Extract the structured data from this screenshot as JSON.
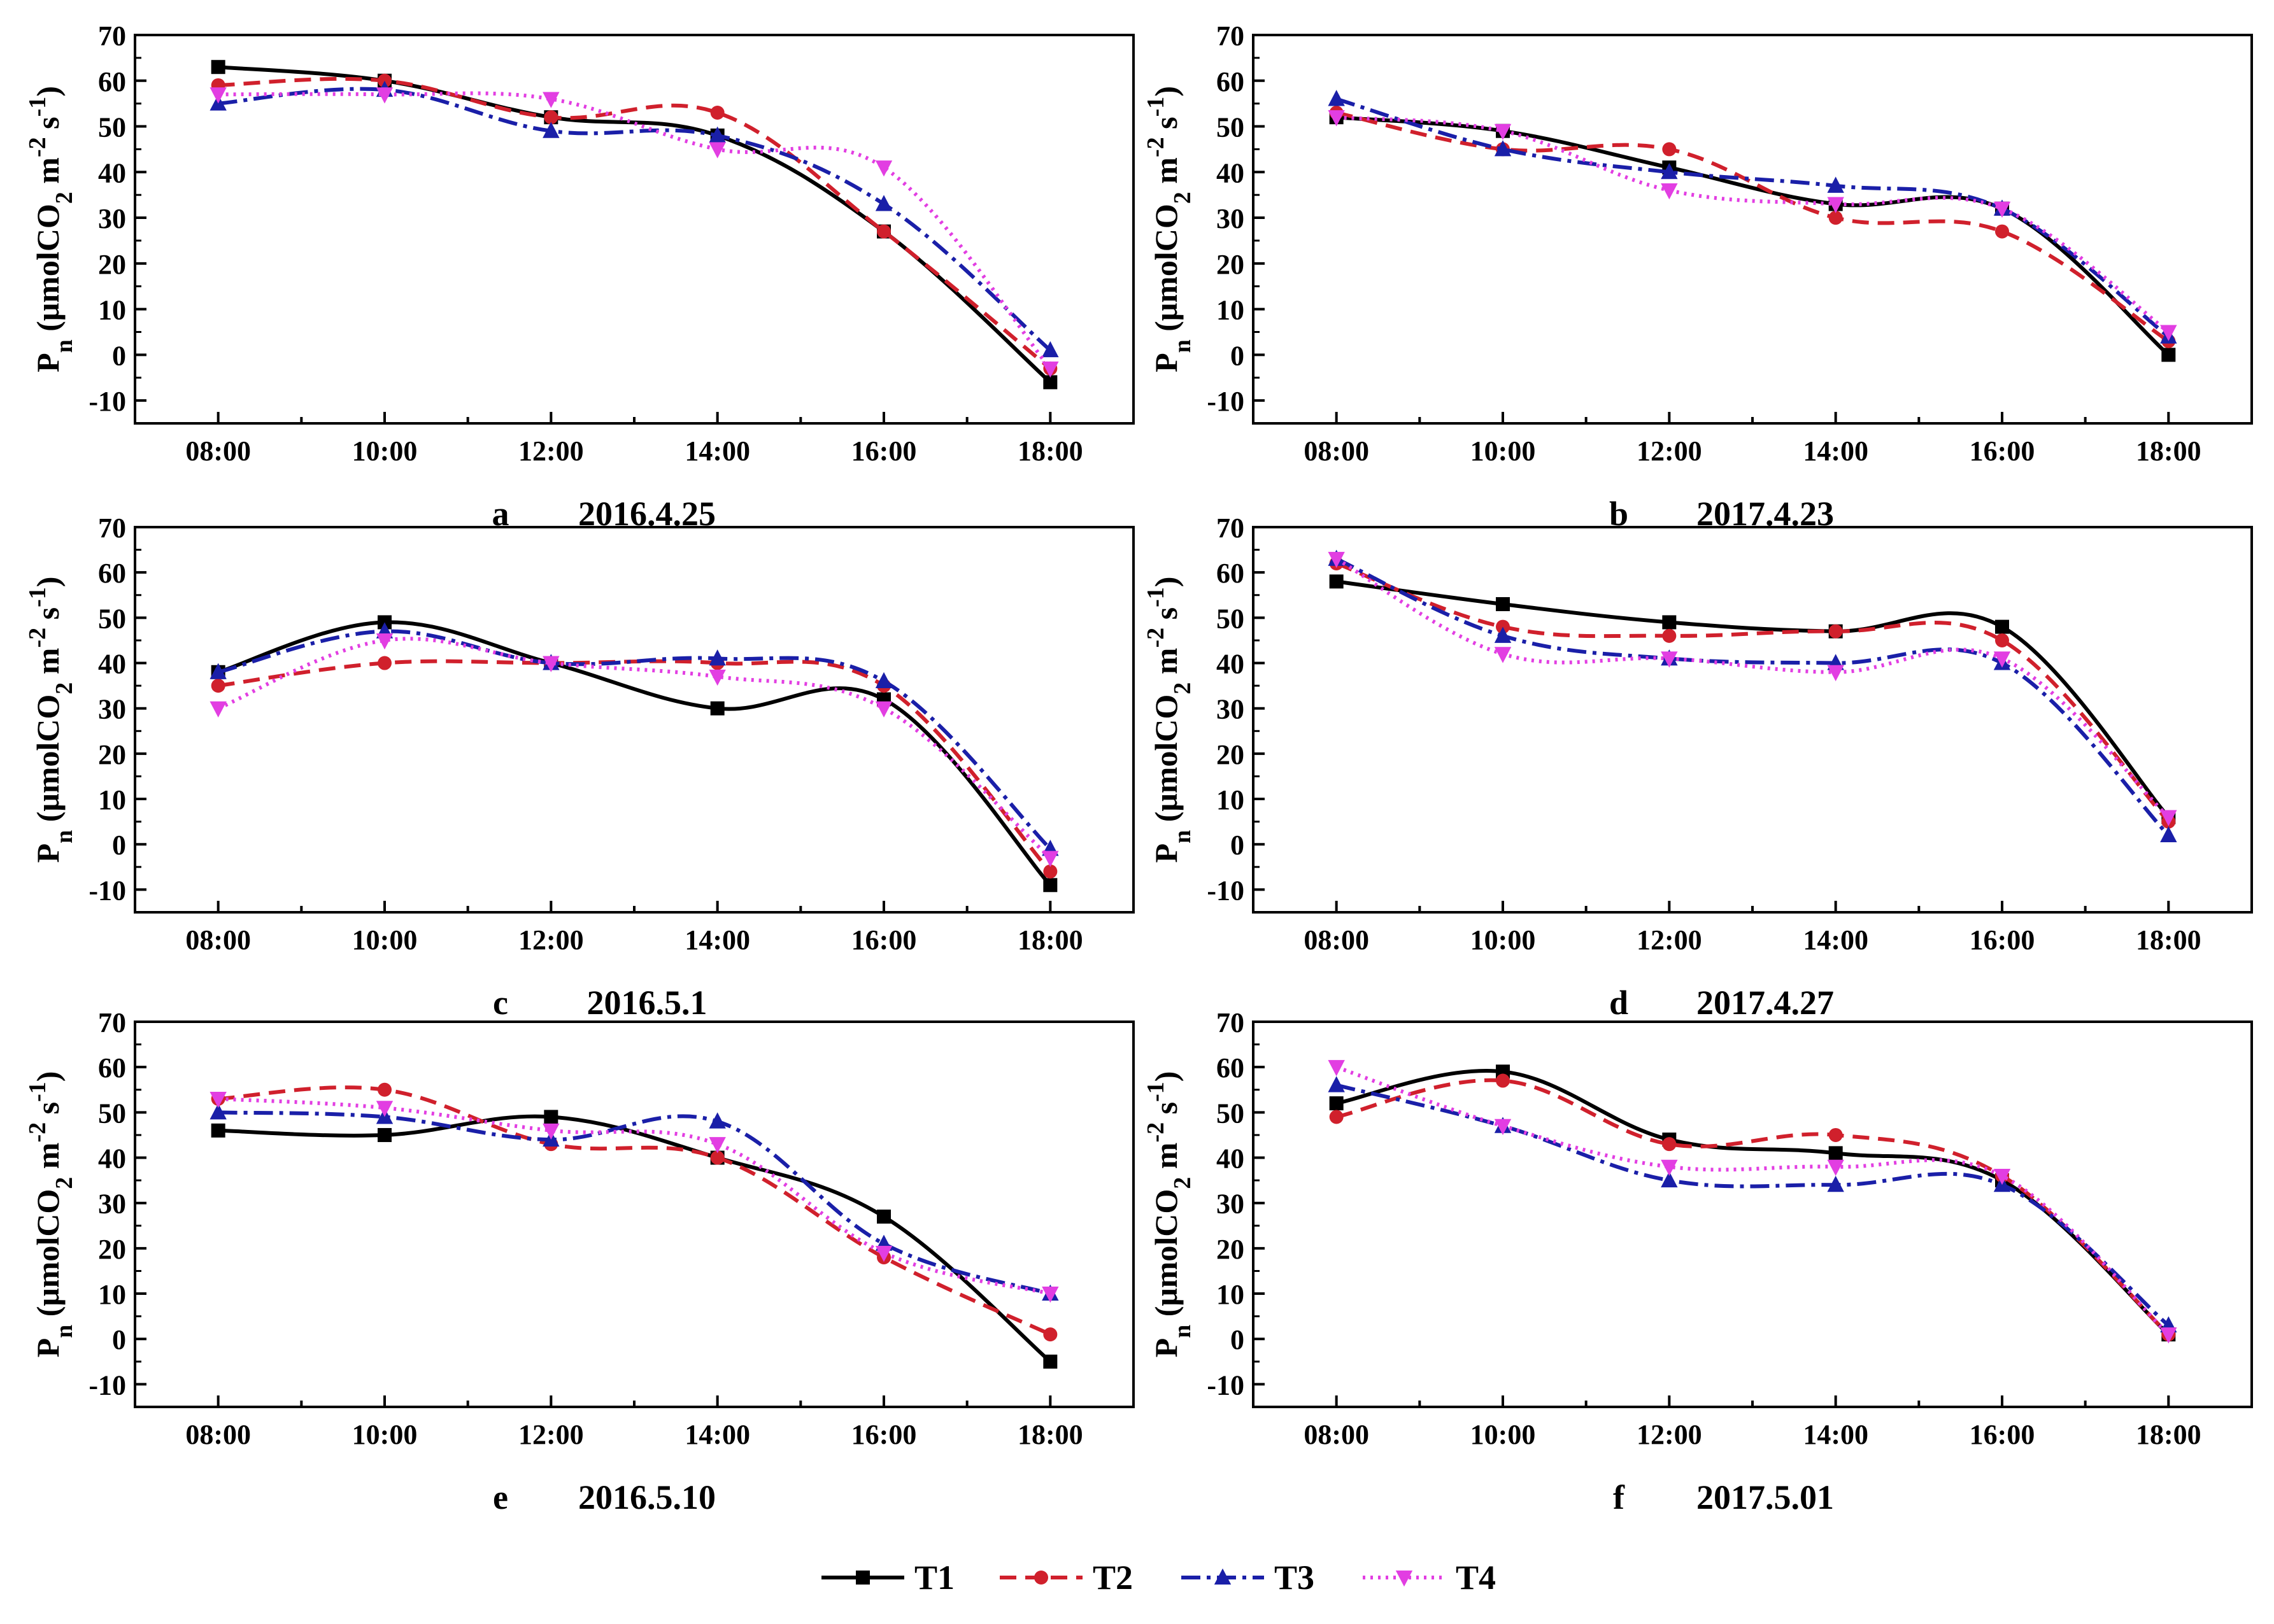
{
  "figure": {
    "ylabel": {
      "main": "P",
      "sub_n": "n",
      "unit_open": " (μmolCO",
      "sub_2": "2",
      "unit_mid": " m",
      "sup_m2": "-2",
      "unit_s": " s",
      "sup_m1": "-1",
      "unit_close": ")"
    },
    "series_styles": [
      {
        "name": "T1",
        "color": "#000000",
        "dash": "",
        "marker": "square"
      },
      {
        "name": "T2",
        "color": "#d0202c",
        "dash": "26 14",
        "marker": "circle"
      },
      {
        "name": "T3",
        "color": "#1a1fa8",
        "dash": "30 10 6 10",
        "marker": "triangle-up"
      },
      {
        "name": "T4",
        "color": "#e23ee2",
        "dash": "4 8",
        "marker": "triangle-down"
      }
    ],
    "legend": [
      "T1",
      "T2",
      "T3",
      "T4"
    ]
  },
  "chart_data": [
    {
      "type": "line",
      "panel_letter": "a",
      "title": "2016.4.25",
      "categories": [
        "08:00",
        "10:00",
        "12:00",
        "14:00",
        "16:00",
        "18:00"
      ],
      "xlim": [
        7,
        19
      ],
      "ylim": [
        -15,
        70
      ],
      "yticks": [
        -10,
        0,
        10,
        20,
        30,
        40,
        50,
        60,
        70
      ],
      "series": [
        {
          "name": "T1",
          "values": [
            63,
            60,
            52,
            48,
            27,
            -6
          ]
        },
        {
          "name": "T2",
          "values": [
            59,
            60,
            52,
            53,
            27,
            -3
          ]
        },
        {
          "name": "T3",
          "values": [
            55,
            58,
            49,
            48,
            33,
            1
          ]
        },
        {
          "name": "T4",
          "values": [
            57,
            57,
            56,
            45,
            41,
            -3
          ]
        }
      ]
    },
    {
      "type": "line",
      "panel_letter": "b",
      "title": "2017.4.23",
      "categories": [
        "08:00",
        "10:00",
        "12:00",
        "14:00",
        "16:00",
        "18:00"
      ],
      "xlim": [
        7,
        19
      ],
      "ylim": [
        -15,
        70
      ],
      "yticks": [
        -10,
        0,
        10,
        20,
        30,
        40,
        50,
        60,
        70
      ],
      "series": [
        {
          "name": "T1",
          "values": [
            52,
            49,
            41,
            33,
            32,
            0
          ]
        },
        {
          "name": "T2",
          "values": [
            53,
            45,
            45,
            30,
            27,
            3
          ]
        },
        {
          "name": "T3",
          "values": [
            56,
            45,
            40,
            37,
            32,
            4
          ]
        },
        {
          "name": "T4",
          "values": [
            52,
            49,
            36,
            33,
            32,
            5
          ]
        }
      ]
    },
    {
      "type": "line",
      "panel_letter": "c",
      "title": "2016.5.1",
      "categories": [
        "08:00",
        "10:00",
        "12:00",
        "14:00",
        "16:00",
        "18:00"
      ],
      "xlim": [
        7,
        19
      ],
      "ylim": [
        -15,
        70
      ],
      "yticks": [
        -10,
        0,
        10,
        20,
        30,
        40,
        50,
        60,
        70
      ],
      "series": [
        {
          "name": "T1",
          "values": [
            38,
            49,
            40,
            30,
            32,
            -9
          ]
        },
        {
          "name": "T2",
          "values": [
            35,
            40,
            40,
            40,
            35,
            -6
          ]
        },
        {
          "name": "T3",
          "values": [
            38,
            47,
            40,
            41,
            36,
            -1
          ]
        },
        {
          "name": "T4",
          "values": [
            30,
            45,
            40,
            37,
            30,
            -3
          ]
        }
      ]
    },
    {
      "type": "line",
      "panel_letter": "d",
      "title": "2017.4.27",
      "categories": [
        "08:00",
        "10:00",
        "12:00",
        "14:00",
        "16:00",
        "18:00"
      ],
      "xlim": [
        7,
        19
      ],
      "ylim": [
        -15,
        70
      ],
      "yticks": [
        -10,
        0,
        10,
        20,
        30,
        40,
        50,
        60,
        70
      ],
      "series": [
        {
          "name": "T1",
          "values": [
            58,
            53,
            49,
            47,
            48,
            6
          ]
        },
        {
          "name": "T2",
          "values": [
            62,
            48,
            46,
            47,
            45,
            5
          ]
        },
        {
          "name": "T3",
          "values": [
            63,
            46,
            41,
            40,
            40,
            2
          ]
        },
        {
          "name": "T4",
          "values": [
            63,
            42,
            41,
            38,
            41,
            6
          ]
        }
      ]
    },
    {
      "type": "line",
      "panel_letter": "e",
      "title": "2016.5.10",
      "categories": [
        "08:00",
        "10:00",
        "12:00",
        "14:00",
        "16:00",
        "18:00"
      ],
      "xlim": [
        7,
        19
      ],
      "ylim": [
        -15,
        70
      ],
      "yticks": [
        -10,
        0,
        10,
        20,
        30,
        40,
        50,
        60,
        70
      ],
      "series": [
        {
          "name": "T1",
          "values": [
            46,
            45,
            49,
            40,
            27,
            -5
          ]
        },
        {
          "name": "T2",
          "values": [
            53,
            55,
            43,
            40,
            18,
            1
          ]
        },
        {
          "name": "T3",
          "values": [
            50,
            49,
            44,
            48,
            21,
            10
          ]
        },
        {
          "name": "T4",
          "values": [
            53,
            51,
            46,
            43,
            19,
            10
          ]
        }
      ]
    },
    {
      "type": "line",
      "panel_letter": "f",
      "title": "2017.5.01",
      "categories": [
        "08:00",
        "10:00",
        "12:00",
        "14:00",
        "16:00",
        "18:00"
      ],
      "xlim": [
        7,
        19
      ],
      "ylim": [
        -15,
        70
      ],
      "yticks": [
        -10,
        0,
        10,
        20,
        30,
        40,
        50,
        60,
        70
      ],
      "series": [
        {
          "name": "T1",
          "values": [
            52,
            59,
            44,
            41,
            35,
            1
          ]
        },
        {
          "name": "T2",
          "values": [
            49,
            57,
            43,
            45,
            36,
            1
          ]
        },
        {
          "name": "T3",
          "values": [
            56,
            47,
            35,
            34,
            34,
            3
          ]
        },
        {
          "name": "T4",
          "values": [
            60,
            47,
            38,
            38,
            36,
            1
          ]
        }
      ]
    }
  ]
}
